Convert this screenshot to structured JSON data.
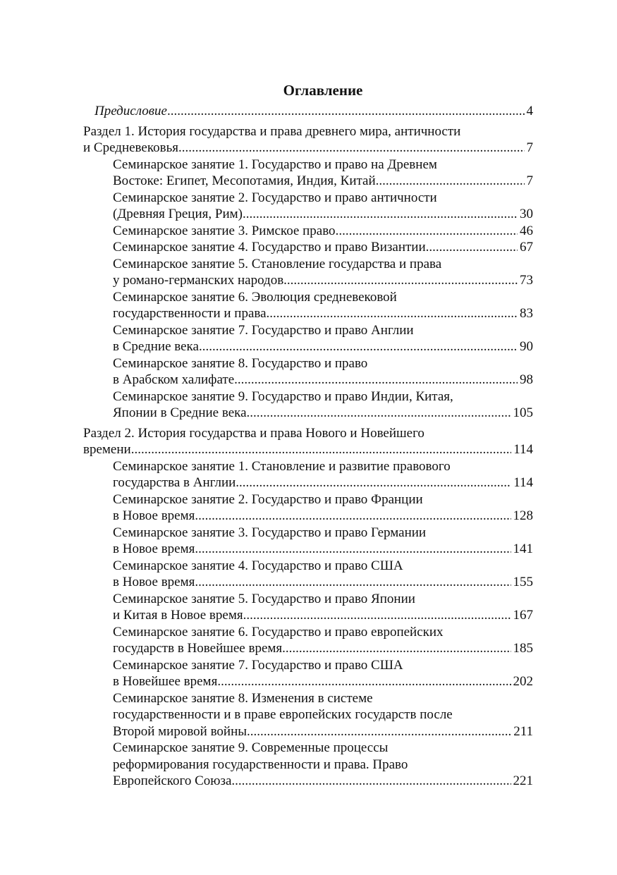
{
  "title": "Оглавление",
  "entries": [
    {
      "type": "preface",
      "lines": [
        "Предисловие"
      ],
      "page": "4"
    },
    {
      "type": "section",
      "lines": [
        "Раздел 1. История государства и права древнего мира, античности",
        "и Средневековья"
      ],
      "page": "7"
    },
    {
      "type": "sub",
      "lines": [
        "Семинарское занятие 1. Государство и право на Древнем",
        "Востоке: Египет, Месопотамия, Индия, Китай"
      ],
      "page": "7"
    },
    {
      "type": "sub",
      "lines": [
        "Семинарское занятие 2. Государство и право античности",
        "(Древняя Греция, Рим)"
      ],
      "page": "30"
    },
    {
      "type": "sub",
      "lines": [
        "Семинарское занятие 3. Римское право"
      ],
      "page": "46"
    },
    {
      "type": "sub",
      "lines": [
        "Семинарское занятие 4. Государство и право Византии"
      ],
      "page": "67"
    },
    {
      "type": "sub",
      "lines": [
        "Семинарское занятие 5. Становление государства и права",
        "у романо-германских народов"
      ],
      "page": "73"
    },
    {
      "type": "sub",
      "lines": [
        "Семинарское занятие 6. Эволюция средневековой",
        "государственности и права"
      ],
      "page": "83"
    },
    {
      "type": "sub",
      "lines": [
        "Семинарское занятие 7. Государство и право Англии",
        "в Средние века"
      ],
      "page": "90"
    },
    {
      "type": "sub",
      "lines": [
        "Семинарское занятие 8. Государство и право",
        "в Арабском халифате"
      ],
      "page": "98"
    },
    {
      "type": "sub",
      "lines": [
        "Семинарское занятие 9. Государство и право Индии, Китая,",
        "Японии в Средние века"
      ],
      "page": "105"
    },
    {
      "type": "section",
      "lines": [
        "Раздел 2. История государства и права Нового и Новейшего",
        "времени"
      ],
      "page": "114"
    },
    {
      "type": "sub",
      "lines": [
        "Семинарское занятие 1. Становление и развитие правового",
        "государства в Англии"
      ],
      "page": "114"
    },
    {
      "type": "sub",
      "lines": [
        "Семинарское занятие 2. Государство и право Франции",
        "в Новое время"
      ],
      "page": "128"
    },
    {
      "type": "sub",
      "lines": [
        "Семинарское занятие 3. Государство и право Германии",
        "в Новое время"
      ],
      "page": "141"
    },
    {
      "type": "sub",
      "lines": [
        "Семинарское занятие 4. Государство и право США",
        "в Новое время"
      ],
      "page": "155"
    },
    {
      "type": "sub",
      "lines": [
        "Семинарское занятие 5. Государство и право Японии",
        "и Китая в Новое время"
      ],
      "page": "167"
    },
    {
      "type": "sub",
      "lines": [
        "Семинарское занятие 6. Государство и право европейских",
        "государств в Новейшее время"
      ],
      "page": "185"
    },
    {
      "type": "sub",
      "lines": [
        "Семинарское занятие 7. Государство и право США",
        "в Новейшее время"
      ],
      "page": "202"
    },
    {
      "type": "sub",
      "lines": [
        "Семинарское занятие 8. Изменения в системе",
        "государственности и в праве европейских государств после",
        "Второй мировой войны"
      ],
      "page": "211"
    },
    {
      "type": "sub",
      "lines": [
        "Семинарское занятие 9. Современные процессы",
        "реформирования государственности и права. Право",
        "Европейского Союза"
      ],
      "page": "221"
    }
  ]
}
